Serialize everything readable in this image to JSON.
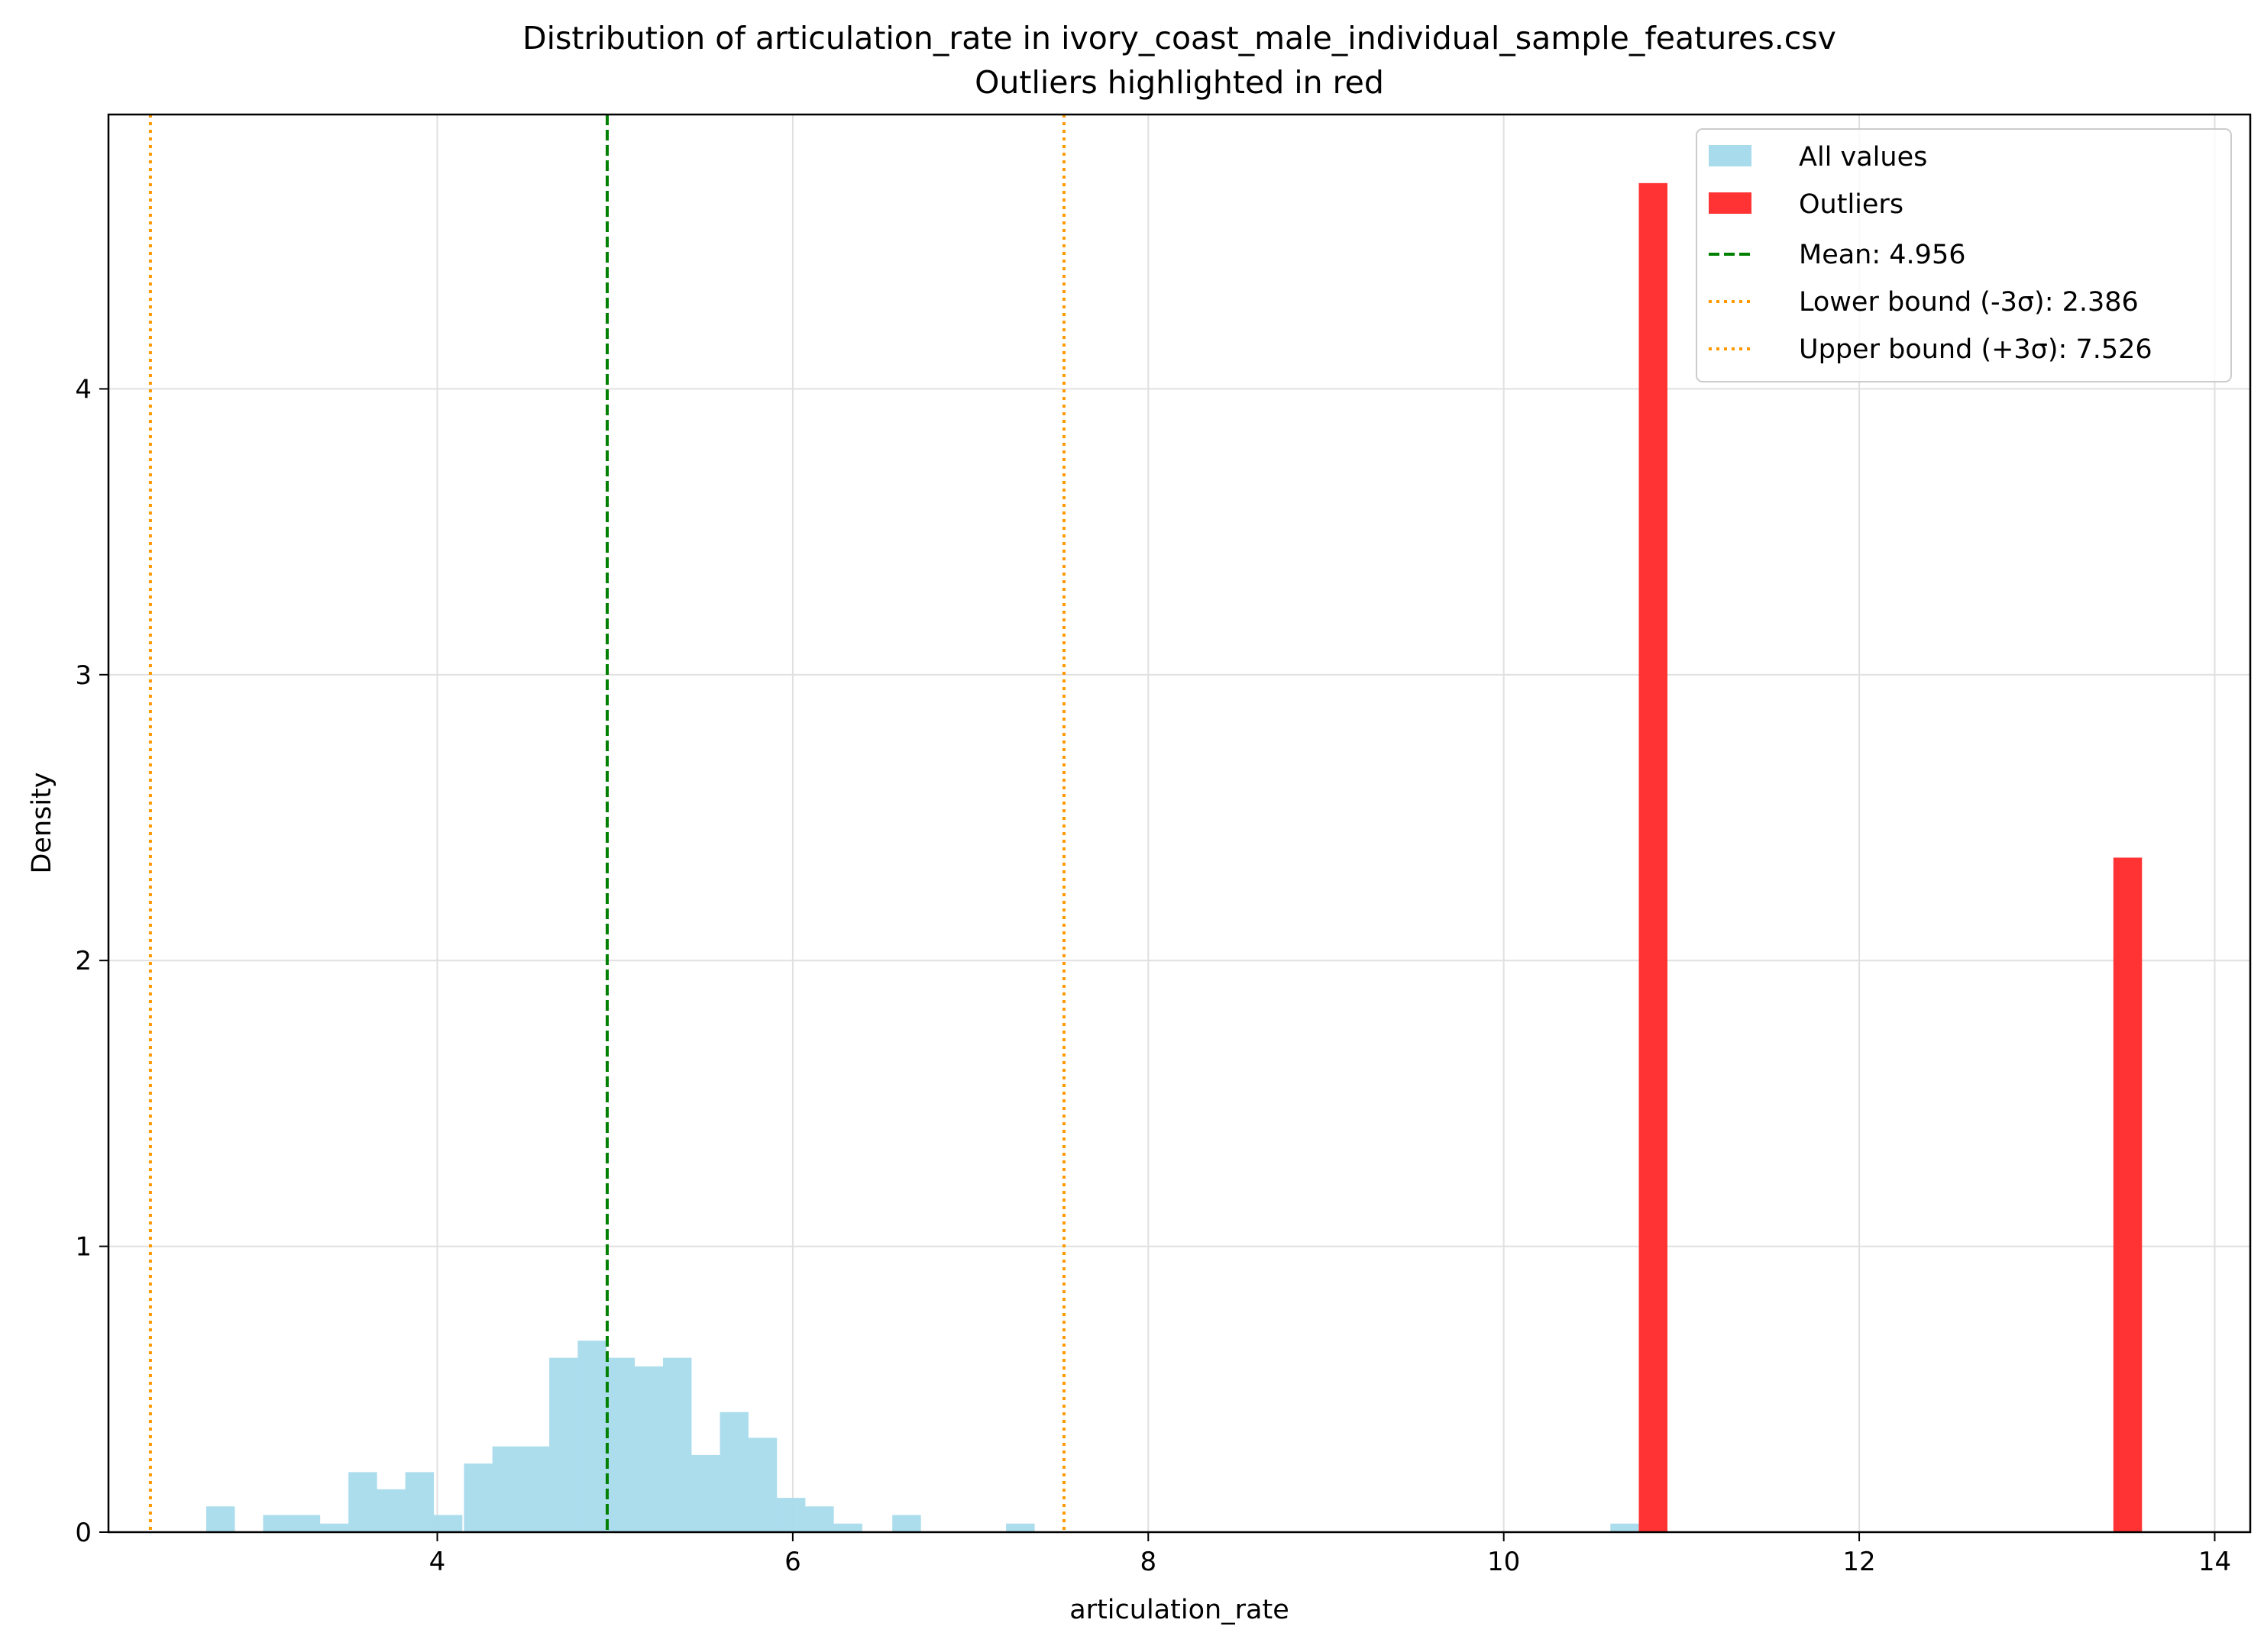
{
  "chart_data": {
    "type": "bar",
    "title": "Distribution of articulation_rate in ivory_coast_male_individual_sample_features.csv",
    "subtitle": "Outliers highlighted in red",
    "xlabel": "articulation_rate",
    "ylabel": "Density",
    "xlim": [
      2.15,
      14.2
    ],
    "ylim": [
      0,
      4.96
    ],
    "xticks": [
      4,
      6,
      8,
      10,
      12,
      14
    ],
    "yticks": [
      0,
      1,
      2,
      3,
      4
    ],
    "grid": true,
    "legend_position": "top-right",
    "bin_width": 0.161,
    "series": [
      {
        "name": "All values",
        "color": "#a8dbec",
        "bins": [
          {
            "x": 2.7,
            "density": 0.09
          },
          {
            "x": 3.02,
            "density": 0.06
          },
          {
            "x": 3.18,
            "density": 0.06
          },
          {
            "x": 3.34,
            "density": 0.03
          },
          {
            "x": 3.5,
            "density": 0.21
          },
          {
            "x": 3.66,
            "density": 0.15
          },
          {
            "x": 3.82,
            "density": 0.21
          },
          {
            "x": 3.98,
            "density": 0.06
          },
          {
            "x": 4.15,
            "density": 0.24
          },
          {
            "x": 4.31,
            "density": 0.3
          },
          {
            "x": 4.47,
            "density": 0.3
          },
          {
            "x": 4.63,
            "density": 0.61
          },
          {
            "x": 4.79,
            "density": 0.67
          },
          {
            "x": 4.95,
            "density": 0.61
          },
          {
            "x": 5.11,
            "density": 0.58
          },
          {
            "x": 5.27,
            "density": 0.61
          },
          {
            "x": 5.43,
            "density": 0.27
          },
          {
            "x": 5.59,
            "density": 0.42
          },
          {
            "x": 5.75,
            "density": 0.33
          },
          {
            "x": 5.91,
            "density": 0.12
          },
          {
            "x": 6.07,
            "density": 0.09
          },
          {
            "x": 6.23,
            "density": 0.03
          },
          {
            "x": 6.56,
            "density": 0.06
          },
          {
            "x": 7.2,
            "density": 0.03
          },
          {
            "x": 10.6,
            "density": 0.03
          }
        ]
      },
      {
        "name": "Outliers",
        "color": "#ff3333",
        "bins": [
          {
            "x": 10.76,
            "density": 4.72
          },
          {
            "x": 13.43,
            "density": 2.36
          }
        ]
      }
    ],
    "reference_lines": [
      {
        "name": "Mean: 4.956",
        "value": 4.956,
        "color": "#008000",
        "style": "dashed"
      },
      {
        "name": "Lower bound (-3σ): 2.386",
        "value": 2.386,
        "color": "#ff9900",
        "style": "dotted"
      },
      {
        "name": "Upper bound (+3σ): 7.526",
        "value": 7.526,
        "color": "#ff9900",
        "style": "dotted"
      }
    ]
  }
}
